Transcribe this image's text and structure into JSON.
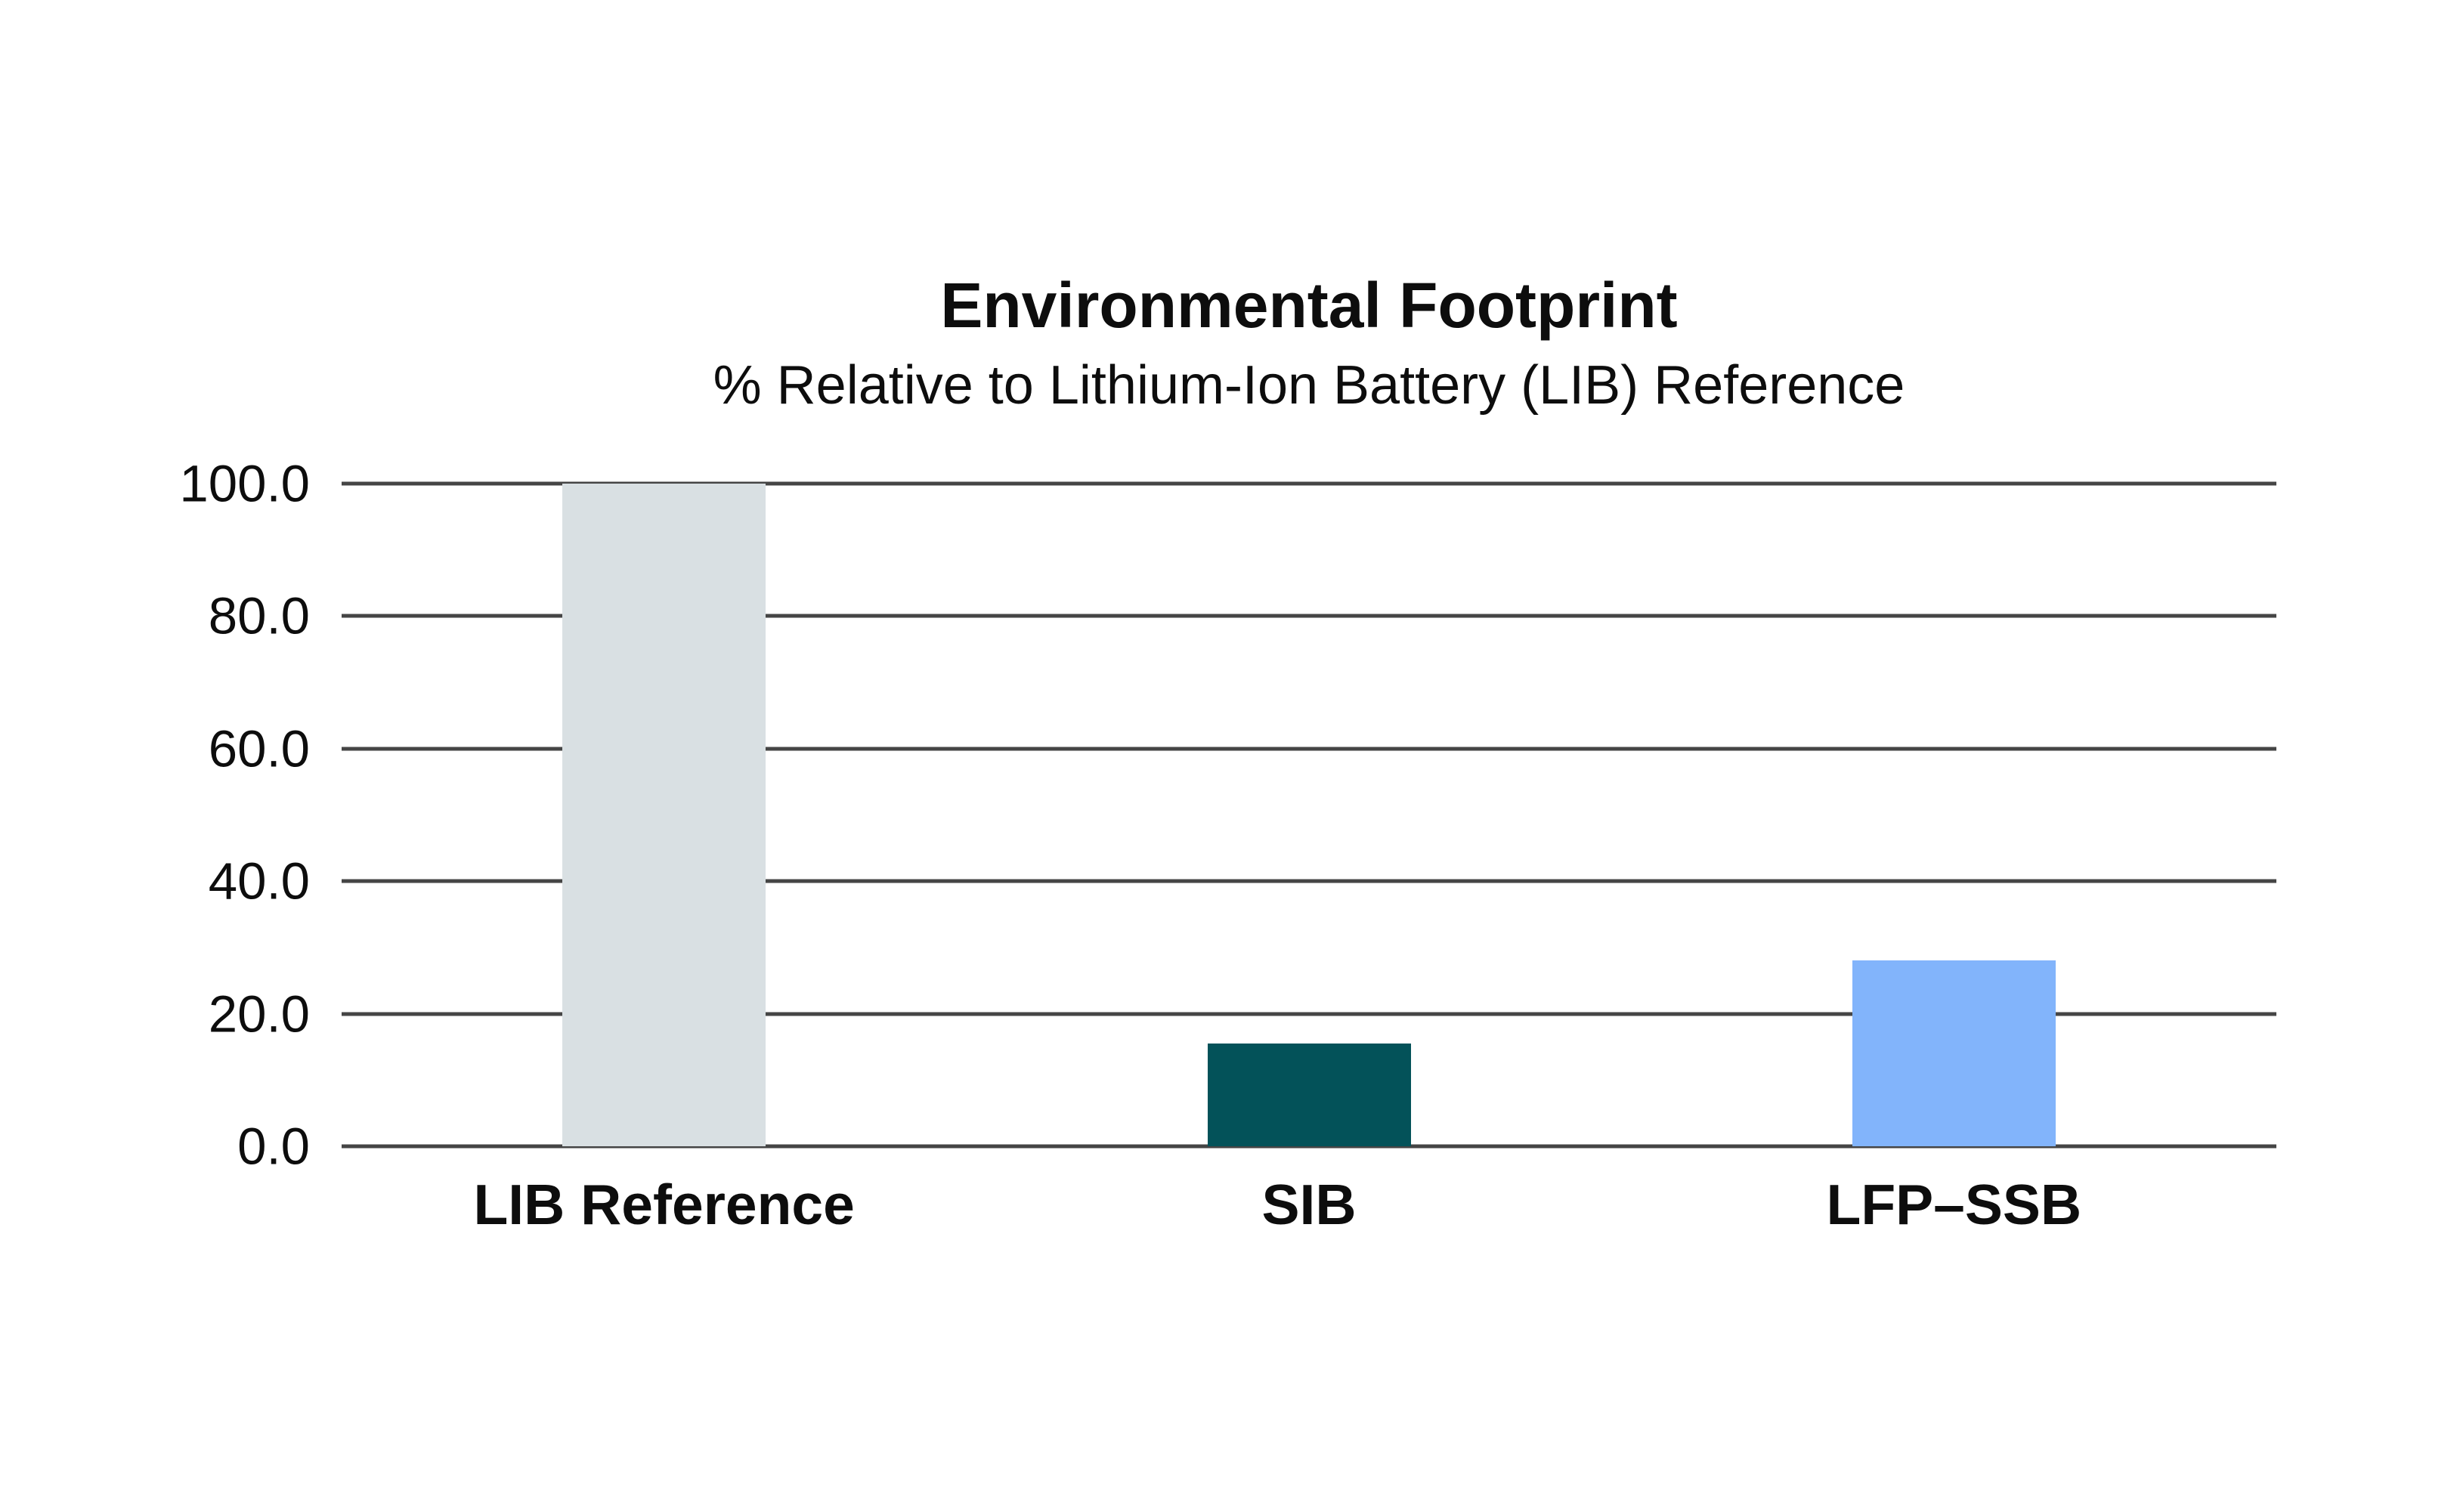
{
  "page": {
    "background_color": "#ffffff",
    "text_color": "#0d0d0d"
  },
  "chart_data": {
    "type": "bar",
    "title": "Environmental Footprint",
    "subtitle": "% Relative to Lithium-Ion Battery (LIB) Reference",
    "categories": [
      "LIB Reference",
      "SIB",
      "LFP–SSB"
    ],
    "values": [
      100.0,
      15.5,
      28.0
    ],
    "bar_colors": [
      "#d9e0e3",
      "#035259",
      "#82b4fb"
    ],
    "xlabel": "",
    "ylabel": "",
    "ylim": [
      0,
      100
    ],
    "yticks": [
      {
        "value": 100,
        "label": "100.0"
      },
      {
        "value": 80,
        "label": "80.0"
      },
      {
        "value": 60,
        "label": "60.0"
      },
      {
        "value": 40,
        "label": "40.0"
      },
      {
        "value": 20,
        "label": "20.0"
      },
      {
        "value": 0,
        "label": "0.0"
      }
    ],
    "grid": "horizontal",
    "gridline_color": "#454545",
    "legend": "none"
  }
}
